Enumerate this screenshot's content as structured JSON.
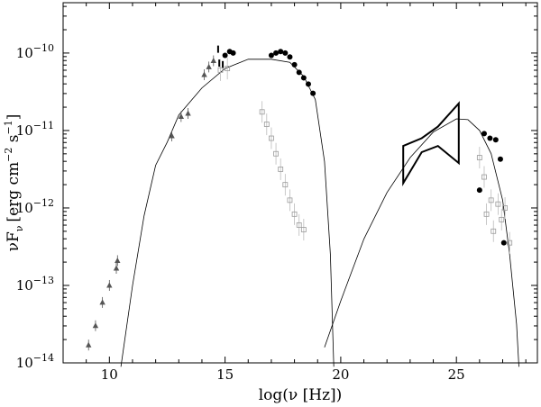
{
  "chart_data": {
    "type": "scatter",
    "xlabel": "log(ν [Hz])",
    "ylabel": "νF",
    "ylabel_sub": "ν",
    "ylabel_units": "[erg cm",
    "ylabel_exp1": "−2",
    "ylabel_mid": " s",
    "ylabel_exp2": "−1",
    "ylabel_end": "]",
    "xlim": [
      8,
      28.5
    ],
    "ylim_log10": [
      -14,
      -9.35
    ],
    "xticks": [
      {
        "value": 10,
        "label": "10"
      },
      {
        "value": 15,
        "label": "15"
      },
      {
        "value": 20,
        "label": "20"
      },
      {
        "value": 25,
        "label": "25"
      }
    ],
    "yticks": [
      {
        "value": -14,
        "base": "10",
        "exp": "−14"
      },
      {
        "value": -13,
        "base": "10",
        "exp": "−13"
      },
      {
        "value": -12,
        "base": "10",
        "exp": "−12"
      },
      {
        "value": -11,
        "base": "10",
        "exp": "−11"
      },
      {
        "value": -10,
        "base": "10",
        "exp": "−10"
      }
    ],
    "grid": false,
    "colors": {
      "triangles": "#555555",
      "hollow_squares": "#9a9a9a",
      "filled_circles": "#000000",
      "model": "#000000"
    },
    "series": [
      {
        "marker": "triangle",
        "points": [
          [
            9.1,
            -13.77
          ],
          [
            9.4,
            -13.52
          ],
          [
            9.7,
            -13.22
          ],
          [
            10.0,
            -13.0
          ],
          [
            10.3,
            -12.78
          ],
          [
            10.35,
            -12.68
          ],
          [
            12.7,
            -11.07
          ],
          [
            13.1,
            -10.82
          ],
          [
            13.4,
            -10.78
          ],
          [
            14.1,
            -10.28
          ],
          [
            14.3,
            -10.18
          ],
          [
            14.5,
            -10.1
          ]
        ]
      },
      {
        "marker": "errorbar-only",
        "points": [
          [
            14.7,
            -9.95
          ],
          [
            14.75,
            -10.13
          ],
          [
            14.9,
            -10.15
          ]
        ]
      },
      {
        "marker": "filled-circle",
        "points": [
          [
            15.0,
            -10.03
          ],
          [
            15.2,
            -9.98
          ],
          [
            15.35,
            -10.0
          ],
          [
            17.0,
            -10.03
          ],
          [
            17.2,
            -10.0
          ],
          [
            17.4,
            -9.98
          ],
          [
            17.6,
            -10.0
          ],
          [
            17.8,
            -10.05
          ],
          [
            18.0,
            -10.15
          ],
          [
            18.2,
            -10.25
          ],
          [
            18.4,
            -10.32
          ],
          [
            18.6,
            -10.4
          ],
          [
            18.8,
            -10.52
          ],
          [
            26.0,
            -11.77
          ],
          [
            26.2,
            -11.04
          ],
          [
            26.45,
            -11.1
          ],
          [
            26.7,
            -11.12
          ],
          [
            26.9,
            -11.37
          ],
          [
            27.05,
            -12.45
          ]
        ]
      },
      {
        "marker": "hollow-square",
        "points": [
          [
            16.6,
            -10.76
          ],
          [
            16.8,
            -10.92
          ],
          [
            17.0,
            -11.1
          ],
          [
            17.2,
            -11.3
          ],
          [
            17.4,
            -11.5
          ],
          [
            17.6,
            -11.7
          ],
          [
            17.8,
            -11.9
          ],
          [
            18.0,
            -12.08
          ],
          [
            18.2,
            -12.22
          ],
          [
            18.4,
            -12.28
          ],
          [
            14.8,
            -10.22
          ],
          [
            15.1,
            -10.2
          ],
          [
            26.0,
            -11.35
          ],
          [
            26.2,
            -11.6
          ],
          [
            26.3,
            -12.08
          ],
          [
            26.5,
            -11.9
          ],
          [
            26.6,
            -12.3
          ],
          [
            26.8,
            -11.95
          ],
          [
            26.95,
            -12.15
          ],
          [
            27.1,
            -12.0
          ],
          [
            27.3,
            -12.45
          ]
        ]
      }
    ],
    "model_curves": [
      {
        "name": "",
        "points": [
          [
            10.5,
            -14.05
          ],
          [
            11.0,
            -13.0
          ],
          [
            11.5,
            -12.1
          ],
          [
            12.0,
            -11.45
          ],
          [
            12.5,
            -11.15
          ],
          [
            13.0,
            -10.8
          ],
          [
            14.0,
            -10.45
          ],
          [
            15.0,
            -10.2
          ],
          [
            16.0,
            -10.08
          ],
          [
            17.0,
            -10.08
          ],
          [
            17.8,
            -10.12
          ],
          [
            18.4,
            -10.3
          ],
          [
            18.9,
            -10.6
          ],
          [
            19.3,
            -11.4
          ],
          [
            19.55,
            -12.6
          ],
          [
            19.7,
            -14.05
          ]
        ]
      },
      {
        "name": "",
        "points": [
          [
            19.3,
            -13.8
          ],
          [
            20.0,
            -13.2
          ],
          [
            21.0,
            -12.4
          ],
          [
            22.0,
            -11.8
          ],
          [
            23.0,
            -11.35
          ],
          [
            24.0,
            -11.02
          ],
          [
            25.0,
            -10.85
          ],
          [
            25.5,
            -10.86
          ],
          [
            26.0,
            -11.0
          ],
          [
            26.5,
            -11.3
          ],
          [
            27.0,
            -11.9
          ],
          [
            27.3,
            -12.6
          ],
          [
            27.6,
            -13.5
          ],
          [
            27.7,
            -14.05
          ]
        ]
      }
    ],
    "bowtie": {
      "upper": [
        [
          22.7,
          -11.2
        ],
        [
          23.5,
          -11.1
        ],
        [
          24.2,
          -10.95
        ],
        [
          25.1,
          -10.65
        ]
      ],
      "lower": [
        [
          22.7,
          -11.68
        ],
        [
          23.5,
          -11.28
        ],
        [
          24.2,
          -11.2
        ],
        [
          25.1,
          -11.42
        ]
      ]
    }
  }
}
